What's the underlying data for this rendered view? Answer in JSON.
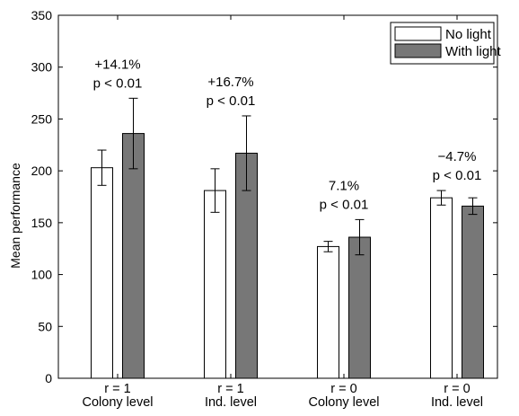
{
  "chart_data": {
    "type": "bar",
    "ylabel": "Mean performance",
    "xlabel": "",
    "ylim": [
      0,
      350
    ],
    "yticks": [
      0,
      50,
      100,
      150,
      200,
      250,
      300,
      350
    ],
    "categories": [
      [
        "r = 1",
        "Colony level"
      ],
      [
        "r = 1",
        "Ind. level"
      ],
      [
        "r = 0",
        "Colony level"
      ],
      [
        "r = 0",
        "Ind. level"
      ]
    ],
    "series": [
      {
        "name": "No light",
        "color": "#ffffff",
        "values": [
          203,
          181,
          127,
          174
        ],
        "errors": [
          17,
          21,
          5,
          7
        ]
      },
      {
        "name": "With light",
        "color": "#777777",
        "values": [
          236,
          217,
          136,
          166
        ],
        "errors": [
          34,
          36,
          17,
          8
        ]
      }
    ],
    "annotations": [
      [
        "+14.1%",
        "p < 0.01"
      ],
      [
        "+16.7%",
        "p < 0.01"
      ],
      [
        "7.1%",
        "p < 0.01"
      ],
      [
        "−4.7%",
        "p < 0.01"
      ]
    ],
    "legend_position": "top-right",
    "grid": false
  }
}
